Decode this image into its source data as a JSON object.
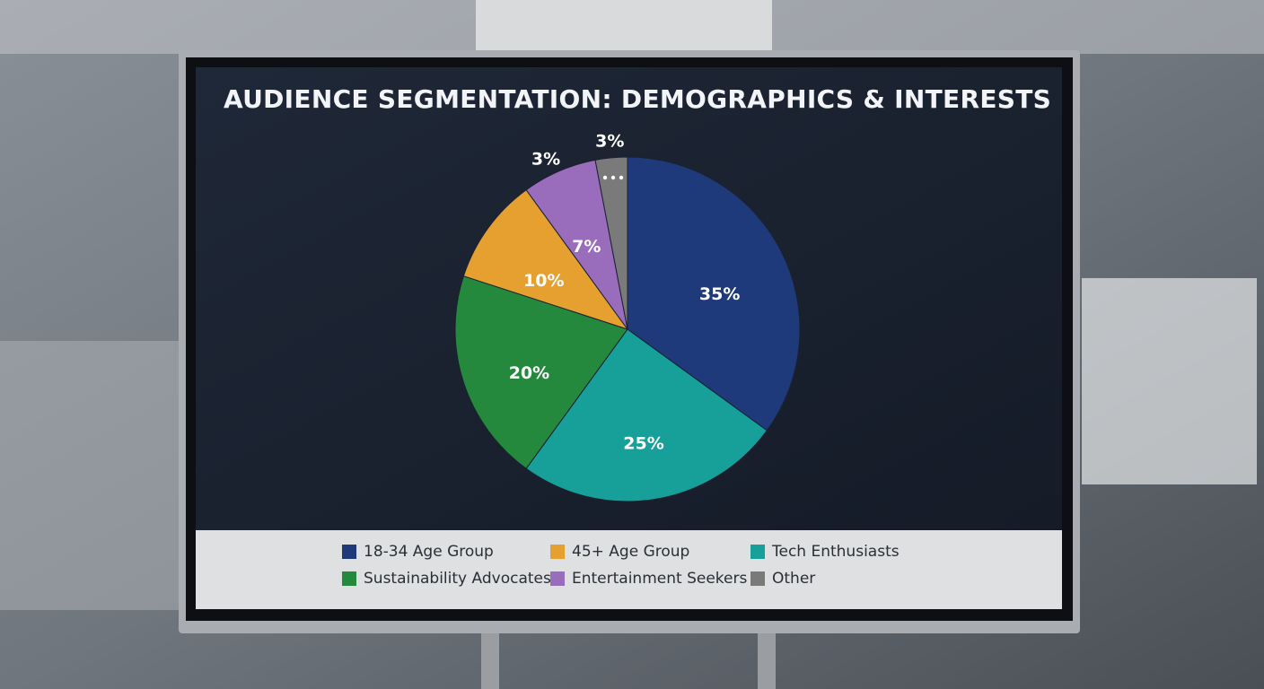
{
  "chart_data": {
    "type": "pie",
    "title": "AUDIENCE SEGMENTATION: DEMOGRAPHICS & INTERESTS",
    "categories": [
      "18-34 Age Group",
      "Tech Enthusiasts",
      "Sustainability Advocates",
      "45+ Age Group",
      "Entertainment Seekers",
      "Other"
    ],
    "values": [
      35,
      25,
      20,
      10,
      7,
      3
    ],
    "value_labels": [
      "35%",
      "25%",
      "20%",
      "10%",
      "7%",
      "3%"
    ],
    "colors": [
      "#1e3a7a",
      "#17a09a",
      "#24893c",
      "#e6a030",
      "#9a6cbc",
      "#7a7a7a"
    ],
    "annotations": [
      "3%"
    ],
    "legend": "bottom"
  }
}
